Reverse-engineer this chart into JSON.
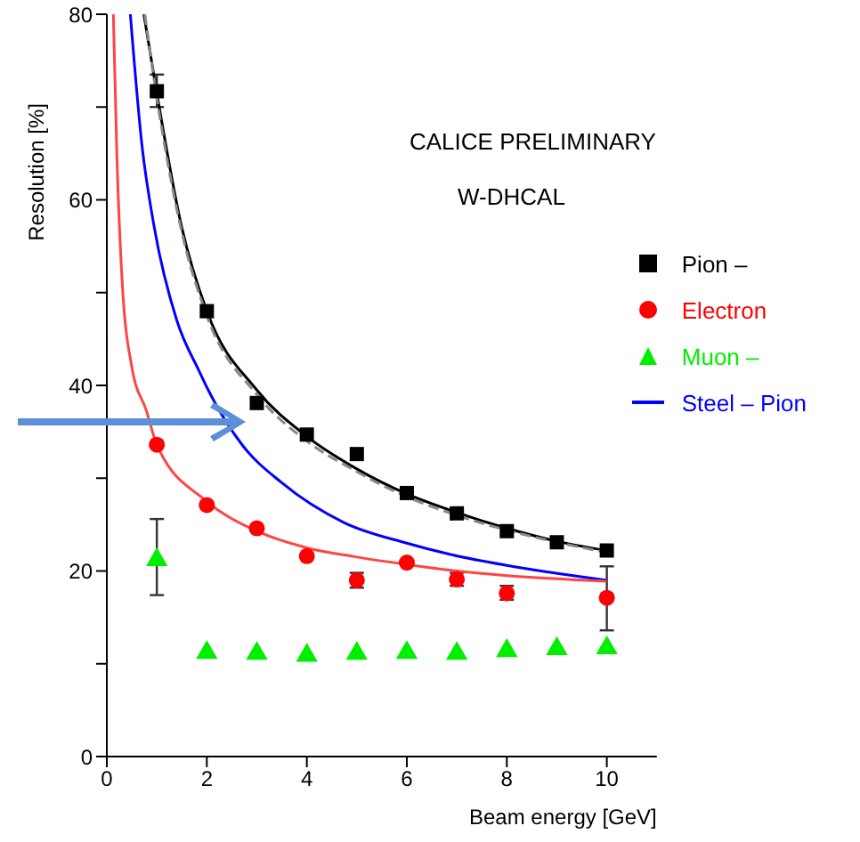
{
  "chart_data": {
    "type": "scatter",
    "xlabel": "Beam energy [GeV]",
    "ylabel": "Resolution [%]",
    "annotations": [
      "CALICE PRELIMINARY",
      "W-DHCAL"
    ],
    "xlim": [
      0,
      11
    ],
    "xticks": [
      0,
      2,
      4,
      6,
      8,
      10
    ],
    "ylim": [
      0,
      80
    ],
    "yticks": [
      0,
      {
        "value": 10,
        "label": null
      },
      20,
      {
        "value": 30,
        "label": null
      },
      40,
      {
        "value": 50,
        "label": null
      },
      60,
      {
        "value": 70,
        "label": null
      },
      80
    ],
    "legend": "right",
    "grid": false,
    "series": [
      {
        "name": "Pion –",
        "marker": "square",
        "color": "#000000",
        "x": [
          1,
          2,
          3,
          4,
          5,
          6,
          7,
          8,
          9,
          10
        ],
        "values": [
          71.7,
          48.0,
          38.1,
          34.7,
          32.6,
          28.4,
          26.2,
          24.3,
          23.1,
          22.2
        ],
        "errors": [
          [
            70,
            73.5
          ],
          null,
          null,
          null,
          null,
          null,
          null,
          null,
          null,
          null
        ]
      },
      {
        "name": "Electron",
        "marker": "circle",
        "color": "#ff0000",
        "x": [
          1,
          2,
          3,
          4,
          5,
          6,
          7,
          8,
          10
        ],
        "values": [
          33.6,
          27.1,
          24.6,
          21.6,
          19.0,
          20.9,
          19.1,
          17.6,
          17.1
        ],
        "errors": [
          null,
          null,
          null,
          null,
          [
            18.2,
            19.8
          ],
          null,
          [
            18.4,
            19.8
          ],
          [
            16.9,
            18.4
          ],
          [
            13.6,
            20.5
          ]
        ]
      },
      {
        "name": "Muon –",
        "marker": "triangle",
        "color": "#00ee00",
        "x": [
          1,
          2,
          3,
          4,
          5,
          6,
          7,
          8,
          9,
          10
        ],
        "values": [
          21.2,
          11.2,
          11.1,
          10.9,
          11.1,
          11.2,
          11.1,
          11.4,
          11.6,
          11.7
        ],
        "errors": [
          [
            17.4,
            25.6
          ],
          null,
          null,
          null,
          null,
          null,
          null,
          null,
          null,
          null
        ]
      },
      {
        "name": "Steel – Pion",
        "type": "line",
        "line_style": "solid",
        "color": "#0000ff",
        "x": [
          0.47,
          0.7,
          0.95,
          1.4,
          1.85,
          2,
          2.72,
          3.5,
          4.75,
          6,
          6.86,
          8,
          10
        ],
        "values": [
          80,
          66,
          57,
          47,
          41.5,
          39.8,
          33.5,
          29.5,
          25.2,
          23,
          21.8,
          20.6,
          19.0
        ]
      },
      {
        "type": "line",
        "line_style": "solid",
        "color": "#000000",
        "x": [
          0.74,
          1,
          1.5,
          2,
          3,
          4,
          5,
          6,
          7,
          8,
          9,
          10
        ],
        "values": [
          80,
          71.5,
          57,
          48,
          39.5,
          34.5,
          31,
          28.3,
          26.3,
          24.6,
          23.2,
          22.2
        ]
      },
      {
        "type": "line",
        "line_style": "dashed",
        "color": "#888888",
        "x": [
          0.76,
          1,
          1.5,
          2,
          3,
          4,
          5,
          6,
          7,
          8,
          9,
          10
        ],
        "values": [
          80,
          71,
          56.5,
          47.5,
          39,
          34,
          30.7,
          28,
          26,
          24.4,
          23.1,
          22.0
        ]
      },
      {
        "type": "line",
        "line_style": "solid",
        "color": "#ff4444",
        "x": [
          0.13,
          0.2,
          0.32,
          0.5,
          0.79,
          1,
          2,
          3,
          4,
          5,
          6,
          7,
          8,
          10
        ],
        "values": [
          80,
          65,
          50,
          42,
          37.3,
          33.6,
          27.5,
          24.3,
          22.5,
          21.5,
          20.7,
          20,
          19.5,
          18.9
        ]
      }
    ]
  }
}
